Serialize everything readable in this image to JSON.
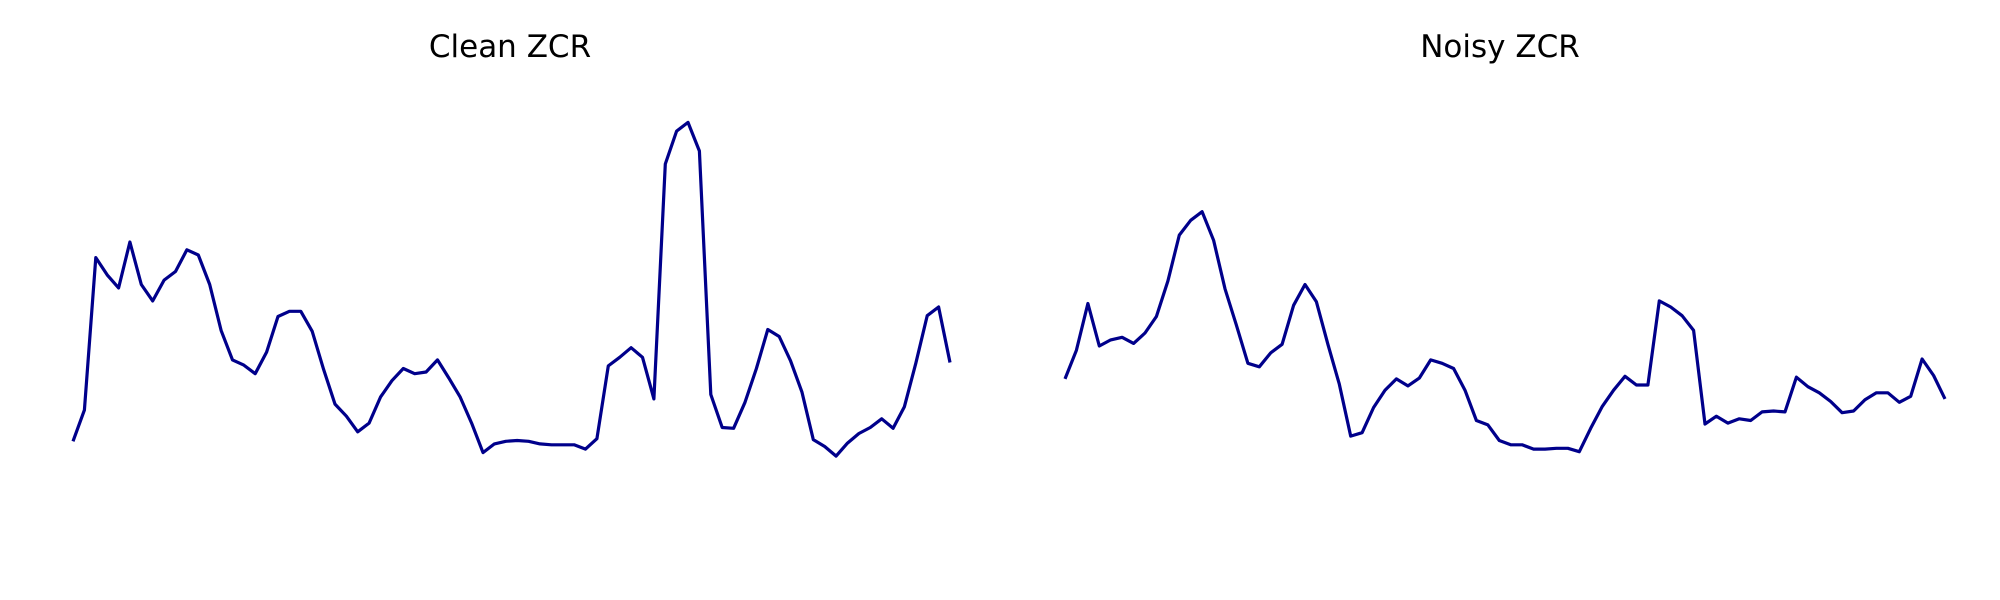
{
  "colors": {
    "line": "#00008b",
    "background": "#ffffff"
  },
  "chart_data": [
    {
      "type": "line",
      "title": "Clean ZCR",
      "xlabel": "",
      "ylabel": "",
      "axes_visible": false,
      "grid": false,
      "ylim": [
        0,
        0.6
      ],
      "x": [
        0,
        1,
        2,
        3,
        4,
        5,
        6,
        7,
        8,
        9,
        10,
        11,
        12,
        13,
        14,
        15,
        16,
        17,
        18,
        19,
        20,
        21,
        22,
        23,
        24,
        25,
        26,
        27,
        28,
        29,
        30,
        31,
        32,
        33,
        34,
        35,
        36,
        37,
        38,
        39,
        40,
        41,
        42,
        43,
        44,
        45,
        46,
        47,
        48,
        49,
        50,
        51,
        52,
        53,
        54,
        55,
        56,
        57,
        58,
        59,
        60,
        61,
        62,
        63,
        64,
        65,
        66,
        67,
        68,
        69,
        70,
        71,
        72,
        73,
        74,
        75,
        76,
        77
      ],
      "series": [
        {
          "values": [
            0.16,
            0.196,
            0.372,
            0.352,
            0.337,
            0.39,
            0.341,
            0.322,
            0.346,
            0.356,
            0.381,
            0.375,
            0.341,
            0.288,
            0.254,
            0.248,
            0.238,
            0.263,
            0.304,
            0.31,
            0.31,
            0.287,
            0.243,
            0.203,
            0.189,
            0.171,
            0.181,
            0.211,
            0.23,
            0.244,
            0.238,
            0.24,
            0.254,
            0.233,
            0.211,
            0.181,
            0.147,
            0.157,
            0.16,
            0.161,
            0.16,
            0.157,
            0.156,
            0.156,
            0.156,
            0.151,
            0.163,
            0.247,
            0.257,
            0.268,
            0.257,
            0.209,
            0.48,
            0.518,
            0.528,
            0.495,
            0.214,
            0.176,
            0.175,
            0.205,
            0.244,
            0.289,
            0.281,
            0.253,
            0.217,
            0.162,
            0.154,
            0.143,
            0.158,
            0.169,
            0.176,
            0.186,
            0.175,
            0.2,
            0.25,
            0.305,
            0.315,
            0.251
          ]
        }
      ]
    },
    {
      "type": "line",
      "title": "Noisy ZCR",
      "xlabel": "",
      "ylabel": "",
      "axes_visible": false,
      "grid": false,
      "ylim": [
        0,
        0.6
      ],
      "x": [
        0,
        1,
        2,
        3,
        4,
        5,
        6,
        7,
        8,
        9,
        10,
        11,
        12,
        13,
        14,
        15,
        16,
        17,
        18,
        19,
        20,
        21,
        22,
        23,
        24,
        25,
        26,
        27,
        28,
        29,
        30,
        31,
        32,
        33,
        34,
        35,
        36,
        37,
        38,
        39,
        40,
        41,
        42,
        43,
        44,
        45,
        46,
        47,
        48,
        49,
        50,
        51,
        52,
        53,
        54,
        55,
        56,
        57,
        58,
        59,
        60,
        61,
        62,
        63,
        64,
        65,
        66,
        67,
        68,
        69,
        70,
        71,
        72,
        73,
        74,
        75,
        76,
        77
      ],
      "series": [
        {
          "values": [
            0.232,
            0.265,
            0.319,
            0.27,
            0.277,
            0.28,
            0.273,
            0.285,
            0.304,
            0.345,
            0.398,
            0.415,
            0.425,
            0.392,
            0.336,
            0.294,
            0.25,
            0.246,
            0.262,
            0.272,
            0.317,
            0.341,
            0.321,
            0.272,
            0.226,
            0.166,
            0.17,
            0.199,
            0.219,
            0.232,
            0.224,
            0.233,
            0.254,
            0.25,
            0.244,
            0.219,
            0.184,
            0.179,
            0.161,
            0.156,
            0.156,
            0.151,
            0.151,
            0.152,
            0.152,
            0.148,
            0.175,
            0.2,
            0.219,
            0.235,
            0.225,
            0.225,
            0.322,
            0.315,
            0.305,
            0.288,
            0.18,
            0.189,
            0.181,
            0.186,
            0.184,
            0.194,
            0.195,
            0.194,
            0.234,
            0.223,
            0.216,
            0.206,
            0.193,
            0.195,
            0.208,
            0.216,
            0.216,
            0.205,
            0.212,
            0.255,
            0.236,
            0.209
          ]
        }
      ]
    }
  ]
}
